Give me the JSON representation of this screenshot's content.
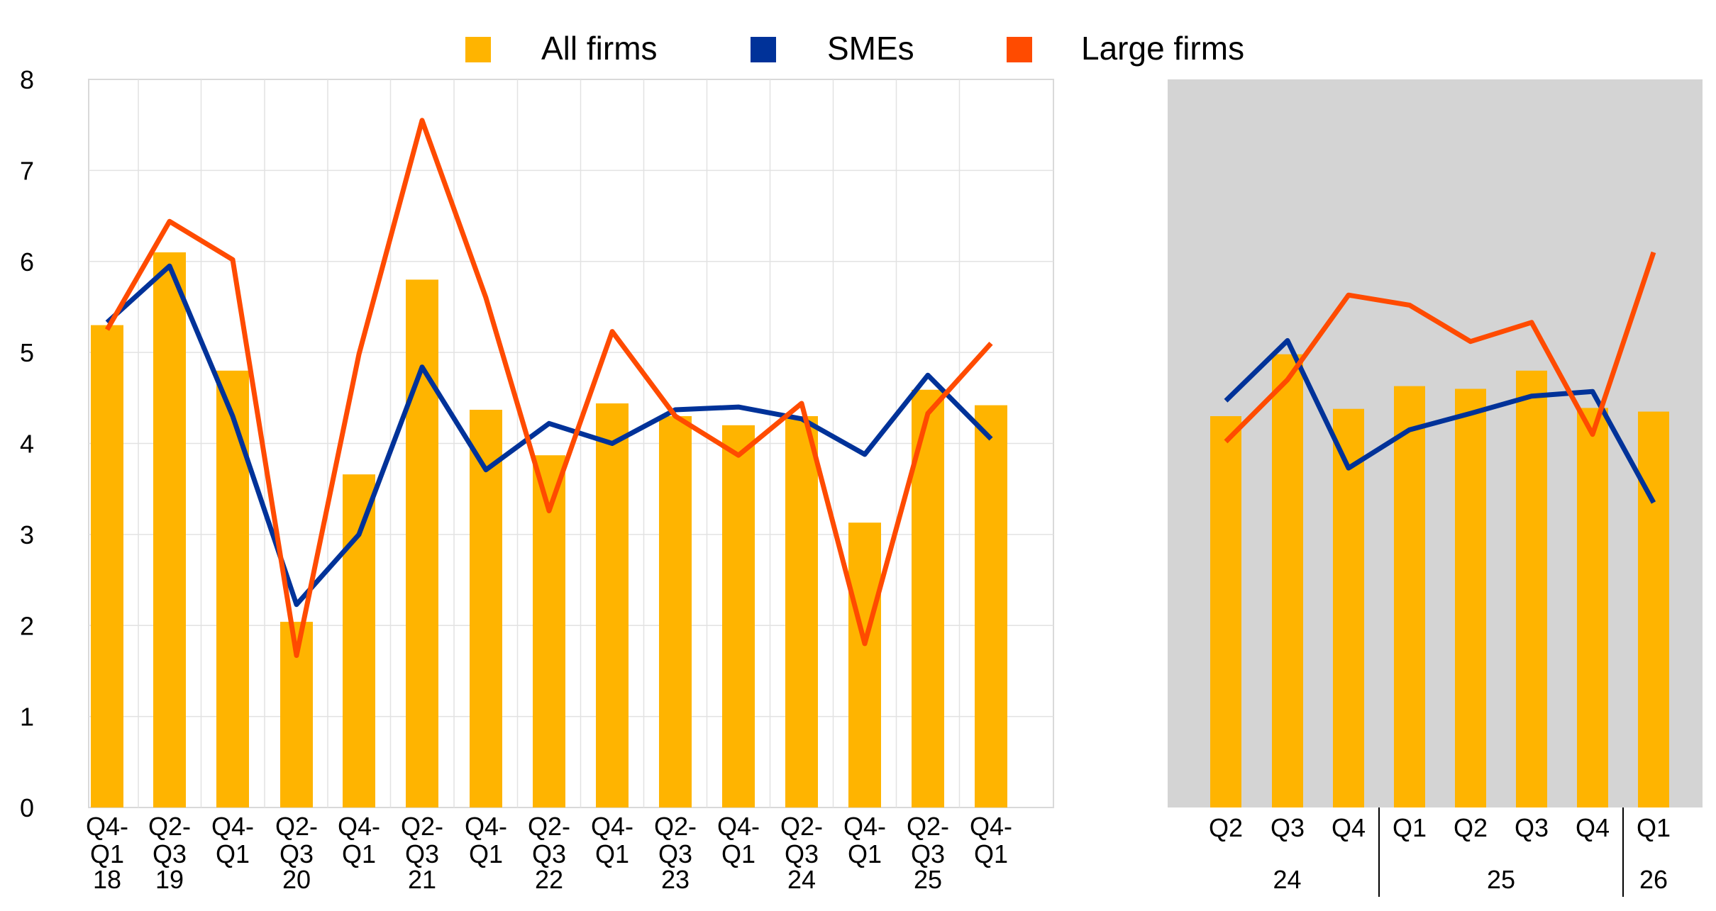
{
  "legend": [
    {
      "label": "All firms",
      "color": "#FFB400"
    },
    {
      "label": "SMEs",
      "color": "#003299"
    },
    {
      "label": "Large firms",
      "color": "#FF4B00"
    }
  ],
  "chart_data": [
    {
      "type": "bar+line",
      "title": "",
      "ylim": [
        0,
        8
      ],
      "yticks": [
        "0",
        "1",
        "2",
        "3",
        "4",
        "5",
        "6",
        "7",
        "8"
      ],
      "grid": true,
      "legend_position": "top",
      "categories": [
        {
          "top": "Q4-",
          "bottom": "Q1",
          "year": "18"
        },
        {
          "top": "Q2-",
          "bottom": "Q3",
          "year": "19"
        },
        {
          "top": "Q4-",
          "bottom": "Q1",
          "year": ""
        },
        {
          "top": "Q2-",
          "bottom": "Q3",
          "year": "20"
        },
        {
          "top": "Q4-",
          "bottom": "Q1",
          "year": ""
        },
        {
          "top": "Q2-",
          "bottom": "Q3",
          "year": "21"
        },
        {
          "top": "Q4-",
          "bottom": "Q1",
          "year": ""
        },
        {
          "top": "Q2-",
          "bottom": "Q3",
          "year": "22"
        },
        {
          "top": "Q4-",
          "bottom": "Q1",
          "year": ""
        },
        {
          "top": "Q2-",
          "bottom": "Q3",
          "year": "23"
        },
        {
          "top": "Q4-",
          "bottom": "Q1",
          "year": ""
        },
        {
          "top": "Q2-",
          "bottom": "Q3",
          "year": "24"
        },
        {
          "top": "Q4-",
          "bottom": "Q1",
          "year": ""
        },
        {
          "top": "Q2-",
          "bottom": "Q3",
          "year": "25"
        },
        {
          "top": "Q4-",
          "bottom": "Q1",
          "year": ""
        }
      ],
      "series": [
        {
          "name": "All firms",
          "kind": "bar",
          "values": [
            5.3,
            6.1,
            4.8,
            2.04,
            3.66,
            5.8,
            4.37,
            3.87,
            4.44,
            4.3,
            4.2,
            4.3,
            3.13,
            4.59,
            4.42
          ]
        },
        {
          "name": "SMEs",
          "kind": "line",
          "values": [
            5.33,
            5.95,
            4.3,
            2.23,
            3.0,
            4.84,
            3.71,
            4.22,
            4.0,
            4.37,
            4.4,
            4.27,
            3.88,
            4.75,
            4.05
          ]
        },
        {
          "name": "Large firms",
          "kind": "line",
          "values": [
            5.25,
            6.44,
            6.02,
            1.67,
            4.98,
            7.55,
            5.6,
            3.26,
            5.23,
            4.3,
            3.87,
            4.44,
            1.8,
            4.33,
            5.1
          ]
        }
      ]
    },
    {
      "type": "bar+line",
      "title": "",
      "ylim": [
        0,
        8
      ],
      "grid": false,
      "categories": [
        "Q2",
        "Q3",
        "Q4",
        "Q1",
        "Q2",
        "Q3",
        "Q4",
        "Q1"
      ],
      "year_groups": [
        {
          "label": "24",
          "start": 0,
          "end": 2
        },
        {
          "label": "25",
          "start": 3,
          "end": 6
        },
        {
          "label": "26",
          "start": 7,
          "end": 7
        }
      ],
      "series": [
        {
          "name": "All firms",
          "kind": "bar",
          "values": [
            4.3,
            4.98,
            4.38,
            4.63,
            4.6,
            4.8,
            4.39,
            4.35
          ]
        },
        {
          "name": "SMEs",
          "kind": "line",
          "values": [
            4.47,
            5.13,
            3.73,
            4.15,
            4.33,
            4.52,
            4.57,
            3.35
          ]
        },
        {
          "name": "Large firms",
          "kind": "line",
          "values": [
            4.02,
            4.7,
            5.63,
            5.52,
            5.12,
            5.33,
            4.1,
            6.1
          ]
        }
      ]
    }
  ]
}
